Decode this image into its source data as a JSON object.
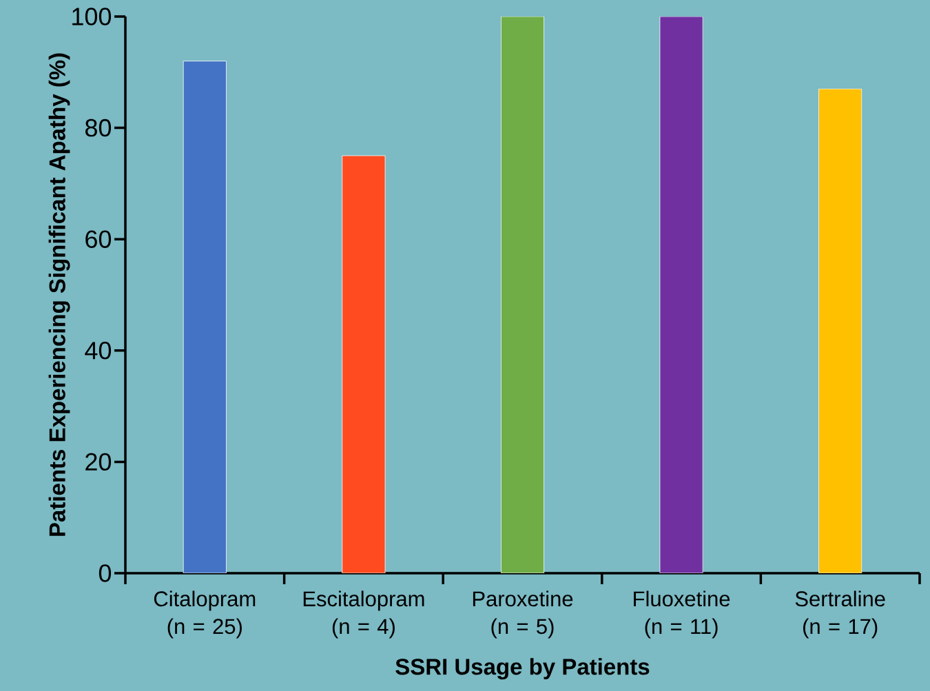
{
  "chart_data": {
    "type": "bar",
    "categories": [
      "Citalopram (n = 25)",
      "Escitalopram (n = 4)",
      "Paroxetine (n = 5)",
      "Fluoxetine (n = 11)",
      "Sertraline (n = 17)"
    ],
    "values": [
      92,
      75,
      100,
      100,
      87
    ],
    "colors": [
      "#4472c4",
      "#ff4b1f",
      "#70ad47",
      "#7030a0",
      "#ffc000"
    ],
    "xlabel": "SSRI Usage by Patients",
    "ylabel": "Patients Experiencing Significant Apathy (%)",
    "ylim": [
      0,
      100
    ],
    "yticks": [
      0,
      20,
      40,
      60,
      80,
      100
    ],
    "grid": false
  }
}
